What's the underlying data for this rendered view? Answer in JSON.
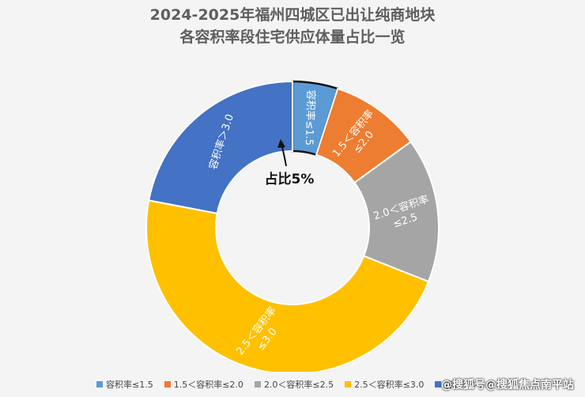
{
  "title_line1": "2024-2025年福州四城区已出让纯商地块",
  "title_line2": "各容积率段住宅供应体量占比一览",
  "chart_data": {
    "type": "pie",
    "donut": true,
    "title": "2024-2025年福州四城区已出让纯商地块各容积率段住宅供应体量占比一览",
    "categories": [
      "容积率≤1.5",
      "1.5＜容积率≤2.0",
      "2.0＜容积率≤2.5",
      "2.5＜容积率≤3.0",
      "容积率＞3.0"
    ],
    "slice_labels": [
      [
        "容积率≤1.5"
      ],
      [
        "1.5＜容积率",
        "≤2.0"
      ],
      [
        "2.0＜容积率",
        "≤2.5"
      ],
      [
        "2.5＜容积率",
        "≤3.0"
      ],
      [
        "容积率＞3.0"
      ]
    ],
    "values": [
      5,
      10,
      16,
      47,
      22
    ],
    "colors": [
      "#5b9bd5",
      "#ed7d31",
      "#a5a5a5",
      "#ffc000",
      "#4472c4"
    ],
    "legend_position": "bottom",
    "highlight_slice": 0,
    "annotation": "占比5%"
  },
  "watermark": "@搜狐号@搜狐焦点南平站"
}
